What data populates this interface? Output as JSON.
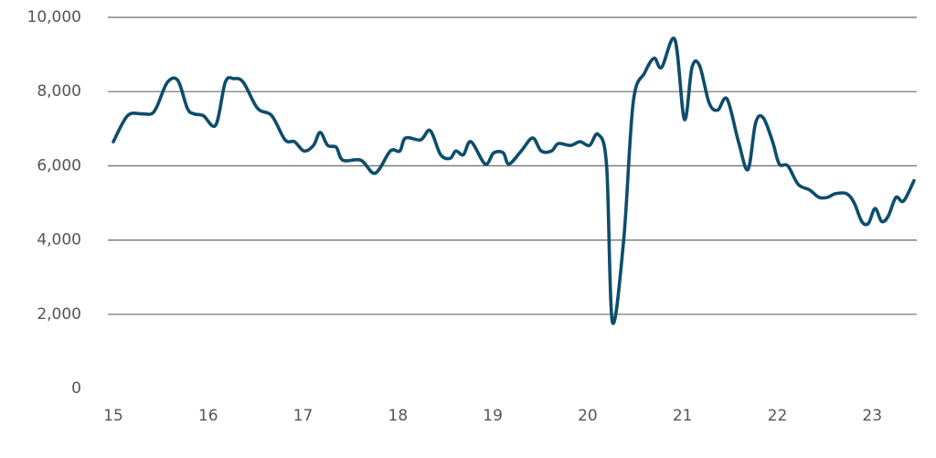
{
  "chart_data": {
    "type": "line",
    "x": [
      15.0,
      15.15,
      15.3,
      15.4,
      15.46,
      15.57,
      15.68,
      15.78,
      15.85,
      15.95,
      16.08,
      16.18,
      16.27,
      16.37,
      16.52,
      16.67,
      16.81,
      16.91,
      17.01,
      17.11,
      17.18,
      17.26,
      17.35,
      17.42,
      17.61,
      17.76,
      17.92,
      18.02,
      18.08,
      18.24,
      18.34,
      18.45,
      18.55,
      18.61,
      18.69,
      18.77,
      18.92,
      19.01,
      19.11,
      19.17,
      19.3,
      19.42,
      19.51,
      19.62,
      19.69,
      19.82,
      19.92,
      20.02,
      20.11,
      20.2,
      20.26,
      20.38,
      20.48,
      20.6,
      20.7,
      20.78,
      20.92,
      21.02,
      21.1,
      21.18,
      21.28,
      21.37,
      21.47,
      21.59,
      21.69,
      21.77,
      21.85,
      21.95,
      22.02,
      22.11,
      22.22,
      22.34,
      22.44,
      22.53,
      22.61,
      22.73,
      22.81,
      22.89,
      22.96,
      23.03,
      23.1,
      23.17,
      23.25,
      23.33,
      23.44
    ],
    "series": [
      {
        "color": "#0d4d6c",
        "values": [
          6650,
          7350,
          7400,
          7400,
          7600,
          8250,
          8300,
          7550,
          7400,
          7350,
          7100,
          8250,
          8350,
          8250,
          7550,
          7350,
          6700,
          6650,
          6400,
          6550,
          6900,
          6550,
          6500,
          6150,
          6150,
          5800,
          6400,
          6400,
          6750,
          6700,
          6950,
          6300,
          6200,
          6400,
          6300,
          6650,
          6050,
          6350,
          6350,
          6050,
          6400,
          6750,
          6400,
          6400,
          6600,
          6550,
          6650,
          6550,
          6850,
          6000,
          1800,
          4000,
          7700,
          8500,
          8900,
          8650,
          9400,
          7250,
          8650,
          8700,
          7700,
          7500,
          7800,
          6650,
          5900,
          7150,
          7300,
          6650,
          6050,
          6000,
          5500,
          5350,
          5150,
          5150,
          5250,
          5250,
          5000,
          4500,
          4450,
          4850,
          4500,
          4650,
          5150,
          5050,
          5600
        ]
      }
    ],
    "xlim": [
      15,
      23.47
    ],
    "xticks": [
      15,
      16,
      17,
      18,
      19,
      20,
      21,
      22,
      23
    ],
    "ylim": [
      0,
      10000
    ],
    "yticks": [
      0,
      {
        "value": 2000,
        "label": "2,000"
      },
      {
        "value": 4000,
        "label": "4,000"
      },
      {
        "value": 6000,
        "label": "6,000"
      },
      {
        "value": 8000,
        "label": "8,000"
      },
      {
        "value": 10000,
        "label": "10,000"
      }
    ],
    "grid": true
  }
}
